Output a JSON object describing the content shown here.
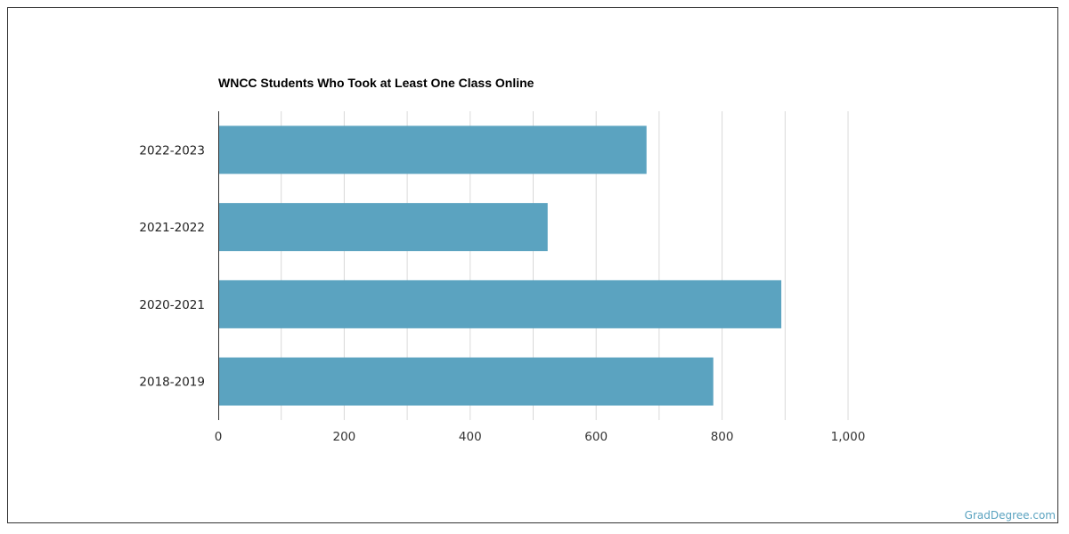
{
  "chart_data": {
    "type": "bar",
    "orientation": "horizontal",
    "title": "WNCC Students Who Took at Least One Class Online",
    "categories": [
      "2022-2023",
      "2021-2022",
      "2020-2021",
      "2018-2019"
    ],
    "values": [
      680,
      523,
      894,
      786
    ],
    "xlim": [
      0,
      1000
    ],
    "x_ticks": [
      "0",
      "200",
      "400",
      "600",
      "800",
      "1,000"
    ],
    "x_tick_values": [
      0,
      200,
      400,
      600,
      800,
      1000
    ],
    "grid": true,
    "bar_color": "#5ba3c0",
    "grid_color": "#d9d9d9",
    "xlabel": "",
    "ylabel": ""
  },
  "watermark": "GradDegree.com"
}
